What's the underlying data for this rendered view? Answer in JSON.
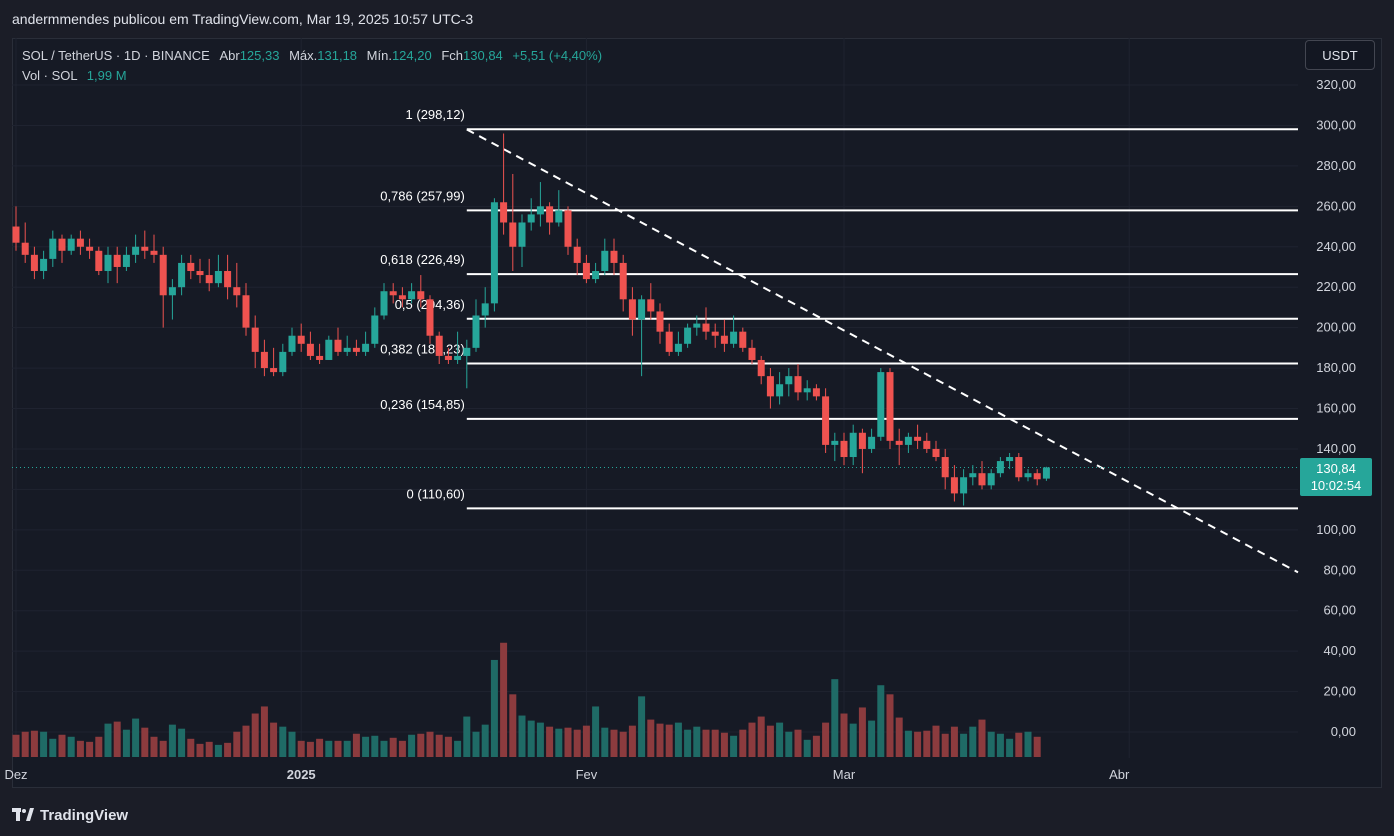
{
  "header": {
    "published_by": "andermmendes publicou em TradingView.com, Mar 19, 2025 10:57 UTC-3"
  },
  "legend": {
    "symbol": "SOL / TetherUS · 1D · BINANCE",
    "open_label": "Abr",
    "open": "125,33",
    "high_label": "Máx.",
    "high": "131,18",
    "low_label": "Mín.",
    "low": "124,20",
    "close_label": "Fch",
    "close": "130,84",
    "change": "+5,51 (+4,40%)",
    "vol_label": "Vol · SOL",
    "vol": "1,99 M"
  },
  "unit_button": "USDT",
  "price_tag": {
    "price": "130,84",
    "countdown": "10:02:54"
  },
  "footer": {
    "brand": "TradingView"
  },
  "colors": {
    "up": "#26a69a",
    "down": "#ef5350",
    "up_vol": "#1f6b66",
    "down_vol": "#8c3b3e",
    "bg": "#161a25",
    "grid": "#1f2330",
    "text": "#d1d4dc"
  },
  "chart_data": {
    "type": "candlestick",
    "y_ticks": [
      "320,00",
      "300,00",
      "280,00",
      "260,00",
      "240,00",
      "220,00",
      "200,00",
      "180,00",
      "160,00",
      "140,00",
      "120,00",
      "100,00",
      "80,00",
      "60,00",
      "40,00",
      "20,00",
      "0,00"
    ],
    "y_tick_values": [
      320,
      300,
      280,
      260,
      240,
      220,
      200,
      180,
      160,
      140,
      120,
      100,
      80,
      60,
      40,
      20,
      0
    ],
    "x_labels": [
      "Dez",
      "2025",
      "Fev",
      "Mar",
      "Abr"
    ],
    "x_label_days": [
      0,
      31,
      62,
      90,
      121
    ],
    "ylim": [
      -12,
      330
    ],
    "fib_levels": [
      {
        "label": "1 (298,12)",
        "value": 298.12
      },
      {
        "label": "0,786 (257,99)",
        "value": 257.99
      },
      {
        "label": "0,618 (226,49)",
        "value": 226.49
      },
      {
        "label": "0,5 (204,36)",
        "value": 204.36
      },
      {
        "label": "0,382 (182,23)",
        "value": 182.23
      },
      {
        "label": "0,236 (154,85)",
        "value": 154.85
      },
      {
        "label": "0 (110,60)",
        "value": 110.6
      }
    ],
    "fib_start_day": 49,
    "trendline": {
      "day0": 49,
      "value0": 298,
      "day1": 115,
      "value1": 138
    },
    "last_price": 130.84,
    "vol_scale": {
      "units_per_tick": 20
    },
    "candles": [
      {
        "o": 250,
        "h": 260,
        "l": 238,
        "c": 242
      },
      {
        "o": 242,
        "h": 252,
        "l": 232,
        "c": 236
      },
      {
        "o": 236,
        "h": 240,
        "l": 224,
        "c": 228
      },
      {
        "o": 228,
        "h": 238,
        "l": 224,
        "c": 234
      },
      {
        "o": 234,
        "h": 248,
        "l": 230,
        "c": 244
      },
      {
        "o": 244,
        "h": 246,
        "l": 232,
        "c": 238
      },
      {
        "o": 238,
        "h": 246,
        "l": 236,
        "c": 244
      },
      {
        "o": 244,
        "h": 248,
        "l": 236,
        "c": 240
      },
      {
        "o": 240,
        "h": 244,
        "l": 234,
        "c": 238
      },
      {
        "o": 238,
        "h": 240,
        "l": 226,
        "c": 228
      },
      {
        "o": 228,
        "h": 240,
        "l": 222,
        "c": 236
      },
      {
        "o": 236,
        "h": 240,
        "l": 222,
        "c": 230
      },
      {
        "o": 230,
        "h": 240,
        "l": 228,
        "c": 236
      },
      {
        "o": 236,
        "h": 246,
        "l": 232,
        "c": 240
      },
      {
        "o": 240,
        "h": 248,
        "l": 234,
        "c": 238
      },
      {
        "o": 238,
        "h": 246,
        "l": 232,
        "c": 236
      },
      {
        "o": 236,
        "h": 240,
        "l": 200,
        "c": 216
      },
      {
        "o": 216,
        "h": 224,
        "l": 204,
        "c": 220
      },
      {
        "o": 220,
        "h": 236,
        "l": 216,
        "c": 232
      },
      {
        "o": 232,
        "h": 236,
        "l": 224,
        "c": 228
      },
      {
        "o": 228,
        "h": 234,
        "l": 222,
        "c": 226
      },
      {
        "o": 226,
        "h": 234,
        "l": 218,
        "c": 222
      },
      {
        "o": 222,
        "h": 236,
        "l": 220,
        "c": 228
      },
      {
        "o": 228,
        "h": 236,
        "l": 214,
        "c": 220
      },
      {
        "o": 220,
        "h": 232,
        "l": 210,
        "c": 216
      },
      {
        "o": 216,
        "h": 222,
        "l": 196,
        "c": 200
      },
      {
        "o": 200,
        "h": 206,
        "l": 180,
        "c": 188
      },
      {
        "o": 188,
        "h": 194,
        "l": 176,
        "c": 180
      },
      {
        "o": 180,
        "h": 190,
        "l": 176,
        "c": 178
      },
      {
        "o": 178,
        "h": 192,
        "l": 176,
        "c": 188
      },
      {
        "o": 188,
        "h": 200,
        "l": 186,
        "c": 196
      },
      {
        "o": 196,
        "h": 202,
        "l": 188,
        "c": 192
      },
      {
        "o": 192,
        "h": 198,
        "l": 184,
        "c": 186
      },
      {
        "o": 186,
        "h": 192,
        "l": 182,
        "c": 184
      },
      {
        "o": 184,
        "h": 196,
        "l": 184,
        "c": 194
      },
      {
        "o": 194,
        "h": 200,
        "l": 186,
        "c": 188
      },
      {
        "o": 188,
        "h": 196,
        "l": 186,
        "c": 190
      },
      {
        "o": 190,
        "h": 194,
        "l": 186,
        "c": 188
      },
      {
        "o": 188,
        "h": 198,
        "l": 186,
        "c": 192
      },
      {
        "o": 192,
        "h": 210,
        "l": 190,
        "c": 206
      },
      {
        "o": 206,
        "h": 222,
        "l": 204,
        "c": 218
      },
      {
        "o": 218,
        "h": 222,
        "l": 212,
        "c": 216
      },
      {
        "o": 216,
        "h": 220,
        "l": 210,
        "c": 214
      },
      {
        "o": 214,
        "h": 222,
        "l": 212,
        "c": 218
      },
      {
        "o": 218,
        "h": 226,
        "l": 210,
        "c": 214
      },
      {
        "o": 214,
        "h": 216,
        "l": 192,
        "c": 196
      },
      {
        "o": 196,
        "h": 198,
        "l": 182,
        "c": 186
      },
      {
        "o": 186,
        "h": 190,
        "l": 182,
        "c": 184
      },
      {
        "o": 184,
        "h": 198,
        "l": 182,
        "c": 186
      },
      {
        "o": 186,
        "h": 194,
        "l": 170,
        "c": 190
      },
      {
        "o": 190,
        "h": 214,
        "l": 188,
        "c": 206
      },
      {
        "o": 206,
        "h": 220,
        "l": 200,
        "c": 212
      },
      {
        "o": 212,
        "h": 264,
        "l": 208,
        "c": 262
      },
      {
        "o": 262,
        "h": 296,
        "l": 246,
        "c": 252
      },
      {
        "o": 252,
        "h": 276,
        "l": 228,
        "c": 240
      },
      {
        "o": 240,
        "h": 256,
        "l": 230,
        "c": 252
      },
      {
        "o": 252,
        "h": 264,
        "l": 248,
        "c": 256
      },
      {
        "o": 256,
        "h": 272,
        "l": 250,
        "c": 260
      },
      {
        "o": 260,
        "h": 262,
        "l": 246,
        "c": 252
      },
      {
        "o": 252,
        "h": 268,
        "l": 250,
        "c": 258
      },
      {
        "o": 258,
        "h": 260,
        "l": 236,
        "c": 240
      },
      {
        "o": 240,
        "h": 244,
        "l": 226,
        "c": 232
      },
      {
        "o": 232,
        "h": 236,
        "l": 222,
        "c": 224
      },
      {
        "o": 224,
        "h": 232,
        "l": 222,
        "c": 228
      },
      {
        "o": 228,
        "h": 244,
        "l": 226,
        "c": 238
      },
      {
        "o": 238,
        "h": 244,
        "l": 226,
        "c": 232
      },
      {
        "o": 232,
        "h": 236,
        "l": 208,
        "c": 214
      },
      {
        "o": 214,
        "h": 220,
        "l": 196,
        "c": 204
      },
      {
        "o": 204,
        "h": 216,
        "l": 176,
        "c": 214
      },
      {
        "o": 214,
        "h": 222,
        "l": 204,
        "c": 208
      },
      {
        "o": 208,
        "h": 212,
        "l": 192,
        "c": 198
      },
      {
        "o": 198,
        "h": 202,
        "l": 186,
        "c": 188
      },
      {
        "o": 188,
        "h": 198,
        "l": 186,
        "c": 192
      },
      {
        "o": 192,
        "h": 202,
        "l": 190,
        "c": 200
      },
      {
        "o": 200,
        "h": 206,
        "l": 196,
        "c": 202
      },
      {
        "o": 202,
        "h": 210,
        "l": 194,
        "c": 198
      },
      {
        "o": 198,
        "h": 202,
        "l": 190,
        "c": 196
      },
      {
        "o": 196,
        "h": 204,
        "l": 188,
        "c": 192
      },
      {
        "o": 192,
        "h": 206,
        "l": 190,
        "c": 198
      },
      {
        "o": 198,
        "h": 200,
        "l": 188,
        "c": 190
      },
      {
        "o": 190,
        "h": 194,
        "l": 182,
        "c": 184
      },
      {
        "o": 184,
        "h": 186,
        "l": 172,
        "c": 176
      },
      {
        "o": 176,
        "h": 180,
        "l": 160,
        "c": 166
      },
      {
        "o": 166,
        "h": 178,
        "l": 162,
        "c": 172
      },
      {
        "o": 172,
        "h": 180,
        "l": 166,
        "c": 176
      },
      {
        "o": 176,
        "h": 182,
        "l": 164,
        "c": 168
      },
      {
        "o": 168,
        "h": 174,
        "l": 164,
        "c": 170
      },
      {
        "o": 170,
        "h": 172,
        "l": 164,
        "c": 166
      },
      {
        "o": 166,
        "h": 170,
        "l": 138,
        "c": 142
      },
      {
        "o": 142,
        "h": 148,
        "l": 134,
        "c": 144
      },
      {
        "o": 144,
        "h": 148,
        "l": 132,
        "c": 136
      },
      {
        "o": 136,
        "h": 152,
        "l": 132,
        "c": 148
      },
      {
        "o": 148,
        "h": 150,
        "l": 128,
        "c": 140
      },
      {
        "o": 140,
        "h": 150,
        "l": 138,
        "c": 146
      },
      {
        "o": 146,
        "h": 180,
        "l": 144,
        "c": 178
      },
      {
        "o": 178,
        "h": 180,
        "l": 140,
        "c": 144
      },
      {
        "o": 144,
        "h": 150,
        "l": 132,
        "c": 142
      },
      {
        "o": 142,
        "h": 148,
        "l": 138,
        "c": 146
      },
      {
        "o": 146,
        "h": 152,
        "l": 140,
        "c": 144
      },
      {
        "o": 144,
        "h": 148,
        "l": 138,
        "c": 140
      },
      {
        "o": 140,
        "h": 144,
        "l": 134,
        "c": 136
      },
      {
        "o": 136,
        "h": 140,
        "l": 120,
        "c": 126
      },
      {
        "o": 126,
        "h": 132,
        "l": 114,
        "c": 118
      },
      {
        "o": 118,
        "h": 130,
        "l": 112,
        "c": 126
      },
      {
        "o": 126,
        "h": 132,
        "l": 122,
        "c": 128
      },
      {
        "o": 128,
        "h": 134,
        "l": 120,
        "c": 122
      },
      {
        "o": 122,
        "h": 130,
        "l": 120,
        "c": 128
      },
      {
        "o": 128,
        "h": 136,
        "l": 126,
        "c": 134
      },
      {
        "o": 134,
        "h": 138,
        "l": 130,
        "c": 136
      },
      {
        "o": 136,
        "h": 138,
        "l": 124,
        "c": 126
      },
      {
        "o": 126,
        "h": 130,
        "l": 124,
        "c": 128
      },
      {
        "o": 128,
        "h": 130,
        "l": 122,
        "c": 125
      },
      {
        "o": 125.33,
        "h": 131.18,
        "l": 124.2,
        "c": 130.84
      }
    ],
    "volumes": [
      22,
      25,
      26,
      25,
      18,
      22,
      20,
      16,
      15,
      20,
      33,
      35,
      27,
      38,
      29,
      20,
      16,
      32,
      28,
      18,
      13,
      15,
      12,
      14,
      25,
      31,
      43,
      50,
      34,
      30,
      25,
      16,
      15,
      18,
      16,
      16,
      16,
      23,
      20,
      21,
      16,
      19,
      16,
      22,
      23,
      25,
      22,
      20,
      16,
      40,
      25,
      32,
      96,
      113,
      62,
      41,
      36,
      34,
      30,
      28,
      29,
      27,
      31,
      50,
      29,
      27,
      25,
      31,
      60,
      37,
      33,
      32,
      34,
      27,
      30,
      27,
      27,
      24,
      21,
      27,
      34,
      40,
      31,
      34,
      25,
      27,
      17,
      21,
      34,
      77,
      43,
      33,
      49,
      36,
      71,
      62,
      39,
      26,
      25,
      26,
      31,
      23,
      30,
      23,
      30,
      37,
      25,
      23,
      18,
      24,
      25,
      20
    ]
  }
}
